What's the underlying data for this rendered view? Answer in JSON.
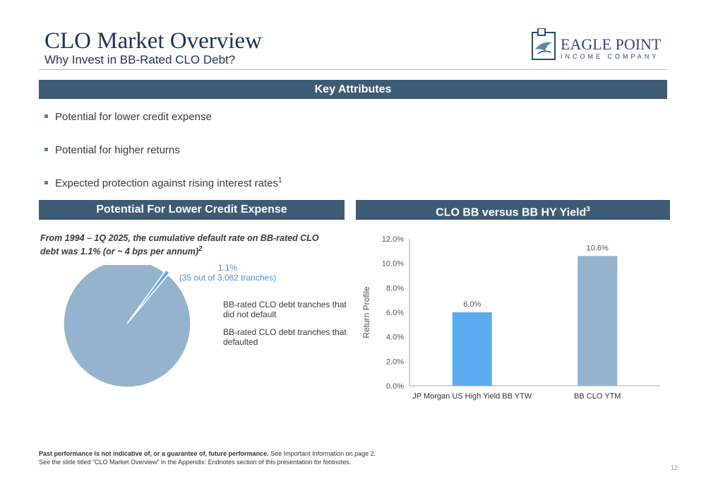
{
  "header": {
    "title": "CLO Market Overview",
    "subtitle": "Why Invest in BB-Rated CLO Debt?",
    "logo_name": "EAGLE POINT",
    "logo_sub": "INCOME COMPANY"
  },
  "key_attributes": {
    "heading": "Key Attributes",
    "bullets": [
      "Potential for lower credit expense",
      "Potential for higher returns",
      "Expected protection against rising interest rates"
    ],
    "bullet3_footnote": "1"
  },
  "left_panel": {
    "heading": "Potential For Lower Credit Expense",
    "intro": "From 1994 – 1Q 2025, the cumulative default rate on BB-rated CLO debt was 1.1% (or ~ 4 bps per annum)",
    "intro_footnote": "2",
    "slice_label_line1": "1.1%",
    "slice_label_line2": "(35 out of 3,062 tranches)",
    "legend": [
      "BB-rated CLO debt tranches that did not default",
      "BB-rated CLO debt tranches that defaulted"
    ]
  },
  "right_panel": {
    "heading": "CLO BB versus BB HY Yield",
    "heading_footnote": "3"
  },
  "chart_data": [
    {
      "type": "pie",
      "slices": [
        {
          "label": "BB-rated CLO debt tranches that did not default",
          "value": 98.9,
          "color": "#95b3cc"
        },
        {
          "label": "BB-rated CLO debt tranches that defaulted",
          "value": 1.1,
          "color": "#5aaaf0"
        }
      ]
    },
    {
      "type": "bar",
      "categories": [
        "JP Morgan US High Yield BB YTW",
        "BB CLO YTM"
      ],
      "values": [
        6.0,
        10.6
      ],
      "data_labels": [
        "6.0%",
        "10.6%"
      ],
      "colors": [
        "#5aaaf0",
        "#95b3cc"
      ],
      "ylabel": "Return Profile",
      "ylim": [
        0,
        12
      ],
      "yticks": [
        "0.0%",
        "2.0%",
        "4.0%",
        "6.0%",
        "8.0%",
        "10.0%",
        "12.0%"
      ],
      "grid": false
    }
  ],
  "footer": {
    "line1_bold": "Past performance is not indicative of, or a guarantee of, future performance.",
    "line1_rest": " See Important Information on page 2.",
    "line2": "See the slide titled “CLO Market Overview” in the Appendix: Endnotes section of this presentation for footnotes.",
    "page": "12"
  }
}
